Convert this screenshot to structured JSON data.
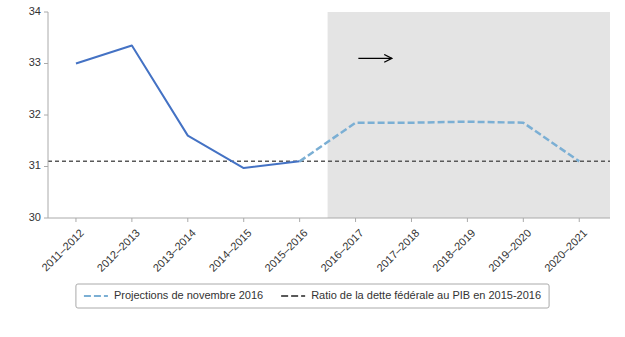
{
  "chart_data": {
    "type": "line",
    "categories": [
      "2011–2012",
      "2012–2013",
      "2013–2014",
      "2014–2015",
      "2015–2016",
      "2016–2017",
      "2017–2018",
      "2018–2019",
      "2019–2020",
      "2020–2021"
    ],
    "series": [
      {
        "color": "#4472c4",
        "line_style": "solid",
        "values": [
          33.0,
          33.35,
          31.6,
          30.97,
          31.1,
          null,
          null,
          null,
          null,
          null
        ]
      },
      {
        "name": "Projections de novembre 2016",
        "color": "#7bafd4",
        "line_style": "dashed",
        "values": [
          null,
          null,
          null,
          null,
          31.1,
          31.85,
          31.85,
          31.87,
          31.85,
          31.1
        ]
      }
    ],
    "reference_lines": [
      {
        "y": 31.1,
        "label": "Ratio de la dette fédérale au PIB en 2015-2016",
        "color": "#595959",
        "line_style": "dashed"
      }
    ],
    "shaded_spans": [
      {
        "start": 4.5,
        "end": 9.55,
        "color": "#e4e4e4"
      }
    ],
    "arrows": [
      {
        "x_start": 5.05,
        "x_end": 5.65,
        "y": 33.1
      }
    ],
    "xlim": [
      -0.5,
      9.55
    ],
    "ylim": [
      30,
      34
    ],
    "yticks": [
      30,
      31,
      32,
      33,
      34
    ],
    "grid": false,
    "legend": "bottom"
  }
}
